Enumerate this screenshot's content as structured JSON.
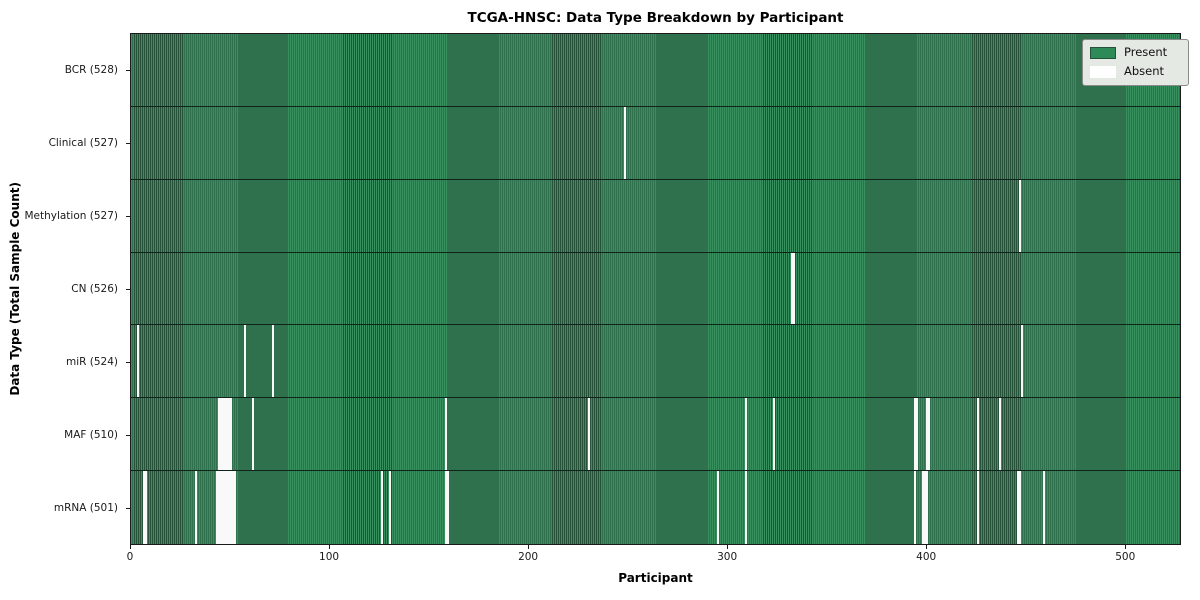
{
  "title": "TCGA-HNSC: Data Type Breakdown by Participant",
  "x_axis_label": "Participant",
  "y_axis_label": "Data Type (Total Sample Count)",
  "legend": {
    "entries": [
      {
        "label": "Present",
        "swatch": "present"
      },
      {
        "label": "Absent",
        "swatch": "absent"
      }
    ]
  },
  "colors": {
    "present_fill": "#37905e",
    "present_edge": "#26523a",
    "absent": "#f9f9f9",
    "legend_bg": "#e4e9e4",
    "legend_swatch_present": "#2e8b57",
    "legend_swatch_edge": "#4a4a4a"
  },
  "chart_data": {
    "type": "heatmap",
    "title": "TCGA-HNSC: Data Type Breakdown by Participant",
    "xlabel": "Participant",
    "ylabel": "Data Type (Total Sample Count)",
    "legend_position": "upper right",
    "n_participants": 528,
    "xlim": [
      0,
      528
    ],
    "x_ticks": [
      0,
      100,
      200,
      300,
      400,
      500
    ],
    "value_encoding": {
      "present": "green",
      "absent": "white"
    },
    "rows": [
      {
        "label": "BCR (528)",
        "data_type": "BCR",
        "total_present": 528,
        "absent_participants": []
      },
      {
        "label": "Clinical (527)",
        "data_type": "Clinical",
        "total_present": 527,
        "absent_participants": [
          248
        ]
      },
      {
        "label": "Methylation (527)",
        "data_type": "Methylation",
        "total_present": 527,
        "absent_participants": [
          447
        ]
      },
      {
        "label": "CN (526)",
        "data_type": "CN",
        "total_present": 526,
        "absent_participants": [
          332,
          333
        ]
      },
      {
        "label": "miR (524)",
        "data_type": "miR",
        "total_present": 524,
        "absent_participants": [
          3,
          57,
          71,
          448
        ]
      },
      {
        "label": "MAF (510)",
        "data_type": "MAF",
        "total_present": 510,
        "absent_participants": [
          44,
          45,
          46,
          47,
          48,
          49,
          50,
          61,
          158,
          230,
          309,
          323,
          394,
          395,
          400,
          401,
          426,
          437
        ]
      },
      {
        "label": "mRNA (501)",
        "data_type": "mRNA",
        "total_present": 501,
        "absent_participants": [
          6,
          7,
          32,
          43,
          44,
          45,
          46,
          47,
          48,
          49,
          50,
          51,
          52,
          126,
          130,
          158,
          159,
          295,
          309,
          394,
          398,
          399,
          400,
          426,
          446,
          447,
          459
        ]
      }
    ]
  }
}
